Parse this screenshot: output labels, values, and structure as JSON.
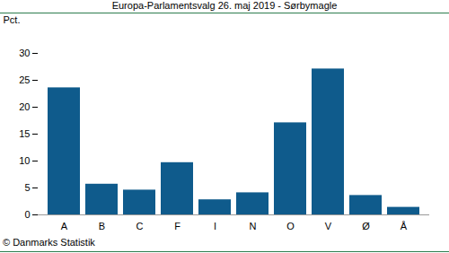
{
  "chart_data": {
    "type": "bar",
    "title": "Europa-Parlamentsvalg 26. maj 2019 - Sørbymagle",
    "ylabel": "Pct.",
    "caption": "© Danmarks Statistik",
    "categories": [
      "A",
      "B",
      "C",
      "F",
      "I",
      "N",
      "O",
      "V",
      "Ø",
      "Å"
    ],
    "values": [
      23.6,
      5.7,
      4.6,
      9.7,
      2.8,
      4.1,
      17.1,
      27.1,
      3.6,
      1.4
    ],
    "color": "#0f5b8c",
    "ylim": [
      0,
      30
    ],
    "yticks": [
      0,
      5,
      10,
      15,
      20,
      25,
      30
    ],
    "grid": false
  }
}
